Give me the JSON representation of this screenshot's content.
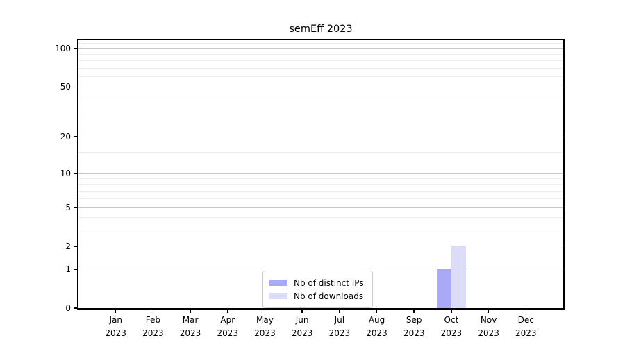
{
  "chart_data": {
    "type": "bar",
    "title": "semEff 2023",
    "categories": [
      "Jan",
      "Feb",
      "Mar",
      "Apr",
      "May",
      "Jun",
      "Jul",
      "Aug",
      "Sep",
      "Oct",
      "Nov",
      "Dec"
    ],
    "x_year": "2023",
    "series": [
      {
        "name": "Nb of distinct IPs",
        "color": "#a9a9f5",
        "values": [
          0,
          0,
          0,
          0,
          0,
          0,
          0,
          0,
          0,
          1,
          0,
          0
        ]
      },
      {
        "name": "Nb of downloads",
        "color": "#dcdcf8",
        "values": [
          0,
          0,
          0,
          0,
          0,
          0,
          0,
          0,
          0,
          2,
          0,
          0
        ]
      }
    ],
    "y_scale": "log1p",
    "ylim": [
      0,
      116
    ],
    "y_ticks": [
      0,
      1,
      2,
      5,
      10,
      20,
      50,
      100
    ],
    "y_minor_ticks": [
      3,
      4,
      6,
      7,
      8,
      9,
      15,
      30,
      40,
      60,
      70,
      80,
      90,
      110
    ],
    "grid": true,
    "legend_position": "lower center"
  },
  "colors": {
    "background": "#ffffff",
    "axis": "#000000",
    "grid_major": "#c6c6c6",
    "grid_minor": "#ededed",
    "legend_border": "#cccccc"
  }
}
